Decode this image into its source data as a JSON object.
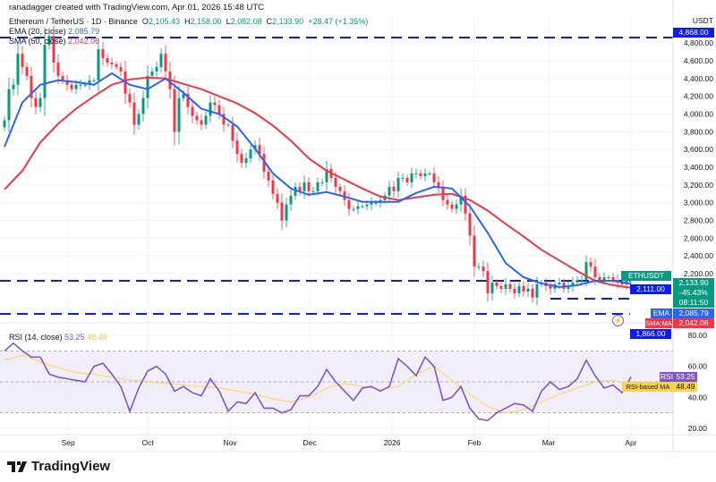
{
  "credit": "ranadagger created with TradingView.com, Apr 01, 2026 15:48 UTC",
  "legend": {
    "symbol": "Ethereum / TetherUS · 1D · Binance",
    "o_label": "O",
    "o": "2,105.43",
    "h_label": "H",
    "h": "2,158.00",
    "l_label": "L",
    "l": "2,082.08",
    "c_label": "C",
    "c": "2,133.90",
    "change": "+28.47 (+1.35%)",
    "ema_label": "EMA (20, close)",
    "ema_value": "2,085.79",
    "sma_label": "SMA (50, close)",
    "sma_value": "2,042.06"
  },
  "rsi_legend": {
    "label": "RSI (14, close)",
    "value": "53.25",
    "ma_value": "48.49"
  },
  "axis": {
    "currency": "USDT",
    "price_ticks": [
      "4,800.00",
      "4,600.00",
      "4,400.00",
      "4,200.00",
      "4,000.00",
      "3,800.00",
      "3,600.00",
      "3,400.00",
      "3,200.00",
      "3,000.00",
      "2,800.00",
      "2,600.00",
      "2,400.00",
      "2,200.00"
    ],
    "rsi_ticks": [
      "80.00",
      "60.00",
      "40.00",
      "20.00"
    ],
    "time_ticks": [
      "Sep",
      "Oct",
      "Nov",
      "Dec",
      "2026",
      "Feb",
      "Mar",
      "Apr"
    ]
  },
  "price_labels": {
    "symbol_tag": "ETHUSDT",
    "last_price": "2,133.90",
    "change_pct": "-45.43%",
    "countdown": "08:11:50",
    "level_top": "4,868.00",
    "level_mid": "2,111.00",
    "level_low": "1,866.00",
    "ema_tag": "EMA",
    "ema_value": "2,085.79",
    "sma_tag": "SMA:MA",
    "sma_value": "2,042.06",
    "rsi_tag": "RSI",
    "rsi_value": "53.25",
    "rsi_ma_tag": "RSI-based MA",
    "rsi_ma_value": "48.49"
  },
  "logo": "TradingView",
  "colors": {
    "up": "#089981",
    "down": "#f23645",
    "ema": "#2962ff",
    "sma": "#f23645",
    "level": "#0c1cf0",
    "rsi": "#7e57c2",
    "rsi_ma": "#f7d34a",
    "rsi_band": "#ede7f6"
  },
  "chart_data": {
    "type": "candlestick",
    "symbol": "ETHUSDT",
    "x_range": [
      "2025-08-08",
      "2026-04-01"
    ],
    "y_range": [
      1750,
      4900
    ],
    "closes": [
      3930,
      4280,
      4330,
      4680,
      4530,
      4430,
      4180,
      4080,
      4180,
      4780,
      4880,
      4580,
      4430,
      4380,
      4330,
      4280,
      4330,
      4330,
      4330,
      4380,
      4380,
      4730,
      4630,
      4580,
      4560,
      4530,
      4480,
      4230,
      4130,
      3880,
      4000,
      4180,
      4430,
      4480,
      4530,
      4680,
      4480,
      4280,
      3800,
      4180,
      4230,
      4080,
      3980,
      3930,
      3880,
      3980,
      4130,
      4100,
      4000,
      3880,
      3880,
      3700,
      3550,
      3450,
      3500,
      3600,
      3650,
      3550,
      3350,
      3250,
      3100,
      3000,
      2800,
      2980,
      3080,
      3180,
      3130,
      3230,
      3130,
      3130,
      3230,
      3230,
      3380,
      3280,
      3180,
      3130,
      3030,
      2930,
      2930,
      2960,
      2960,
      2980,
      3000,
      3000,
      3030,
      3080,
      3180,
      3130,
      3280,
      3280,
      3230,
      3330,
      3330,
      3300,
      3330,
      3330,
      3230,
      3180,
      3030,
      2980,
      2930,
      2980,
      3080,
      2880,
      2630,
      2280,
      2280,
      2230,
      1980,
      2100,
      2060,
      2030,
      2080,
      2030,
      1980,
      2060,
      2000,
      2030,
      1930,
      2080,
      2100,
      2060,
      2030,
      2080,
      2100,
      2030,
      2060,
      2100,
      2130,
      2130,
      2330,
      2280,
      2160,
      2130,
      2160,
      2160,
      2130,
      2100,
      2080,
      2120,
      2133.9
    ],
    "ema20": [
      3630,
      4130,
      4330,
      4380,
      4360,
      4330,
      4460,
      4330,
      4280,
      4400,
      4240,
      4060,
      4000,
      3860,
      3610,
      3330,
      3160,
      3090,
      3120,
      3070,
      3010,
      3010,
      3010,
      3110,
      3180,
      3160,
      2960,
      2660,
      2320,
      2160,
      2090,
      2050,
      2070,
      2120,
      2120,
      2085.79
    ],
    "sma50": [
      3150,
      3360,
      3680,
      3890,
      4060,
      4200,
      4330,
      4390,
      4410,
      4400,
      4340,
      4280,
      4200,
      4120,
      4010,
      3870,
      3700,
      3500,
      3360,
      3260,
      3160,
      3070,
      3030,
      3060,
      3090,
      3100,
      3030,
      2910,
      2760,
      2620,
      2470,
      2350,
      2230,
      2120,
      2070,
      2042.06
    ],
    "levels": [
      4868,
      2111,
      1866
    ],
    "rsi": [
      70,
      75,
      70,
      66,
      66,
      55,
      53,
      52,
      51,
      50,
      60,
      62,
      55,
      47,
      31,
      46,
      57,
      60,
      55,
      44,
      47,
      43,
      41,
      52,
      44,
      31,
      37,
      36,
      43,
      33,
      33,
      30,
      32,
      41,
      41,
      47,
      58,
      50,
      44,
      38,
      46,
      47,
      44,
      47,
      65,
      60,
      54,
      66,
      60,
      38,
      40,
      47,
      33,
      26,
      25,
      30,
      33,
      36,
      35,
      31,
      44,
      50,
      45,
      47,
      52,
      64,
      54,
      46,
      48,
      43,
      53.25
    ],
    "rsi_ma": [
      64,
      67,
      63,
      59,
      56,
      55,
      53,
      51,
      50,
      49,
      48,
      47,
      46,
      44,
      42,
      39,
      37,
      40,
      46,
      49,
      47,
      45,
      47,
      55,
      60,
      51,
      42,
      34,
      30,
      32,
      37,
      42,
      46,
      50,
      51,
      48.49
    ],
    "rsi_range": [
      10,
      90
    ],
    "rsi_bands": [
      70,
      50,
      30
    ]
  }
}
